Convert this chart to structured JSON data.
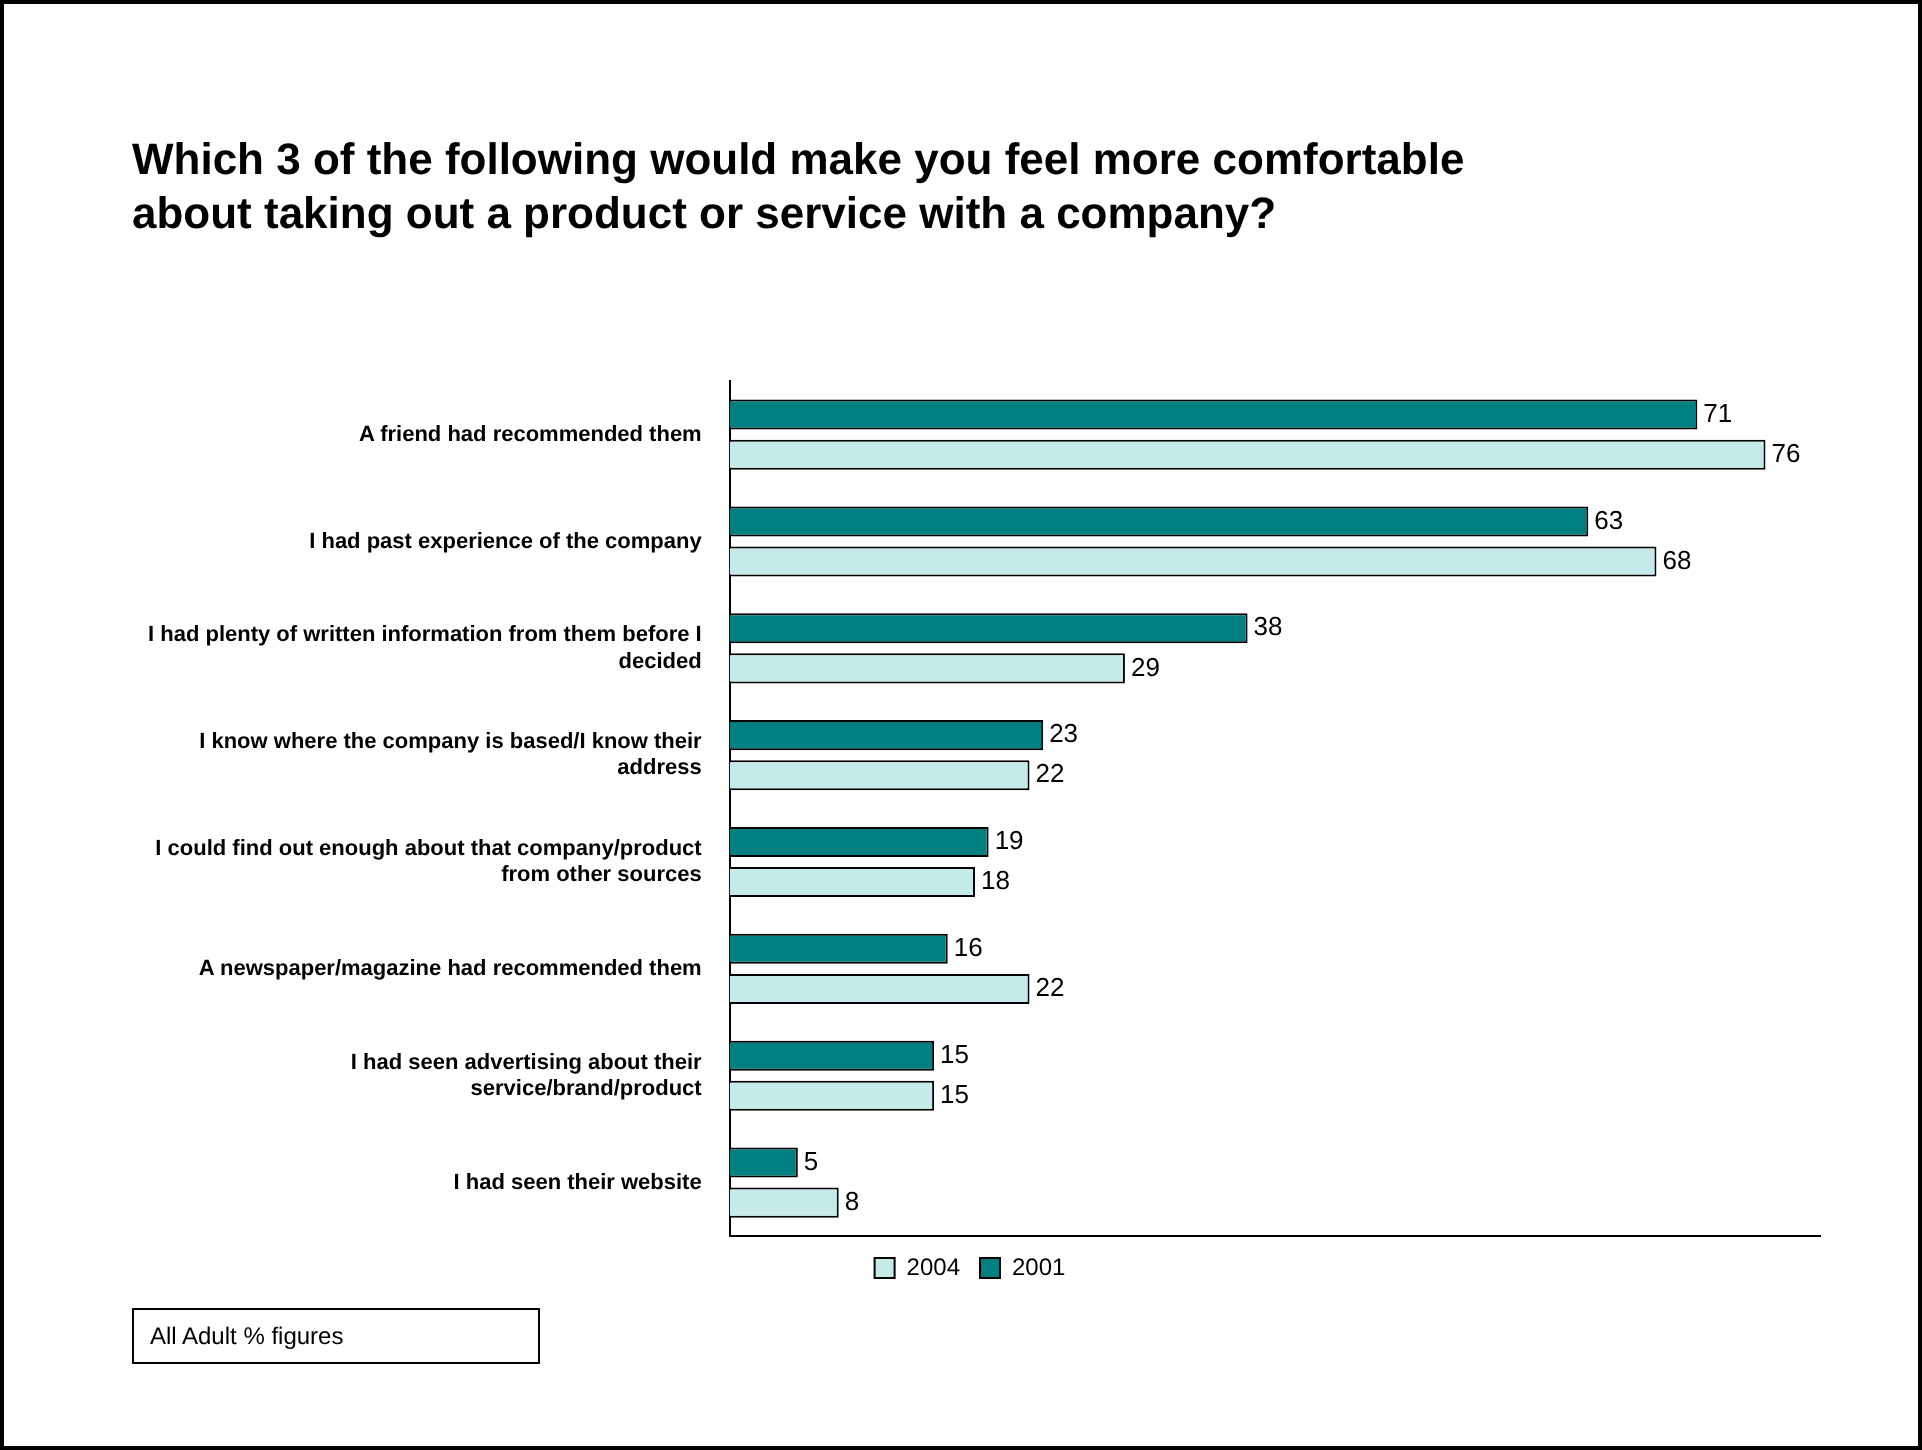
{
  "chart_data": {
    "type": "bar",
    "orientation": "horizontal",
    "title": "Which 3 of the following would make you feel more comfortable about taking out a product or service with a company?",
    "categories": [
      "A friend had recommended them",
      "I had past experience of the company",
      "I had plenty of written information from them before I decided",
      "I know where the company is based/I know their address",
      "I could find out enough about that company/product from other sources",
      "A newspaper/magazine had recommended them",
      "I had seen advertising about their service/brand/product",
      "I had seen their website"
    ],
    "series": [
      {
        "name": "2001",
        "color": "#008080",
        "values": [
          71,
          63,
          38,
          23,
          19,
          16,
          15,
          5
        ]
      },
      {
        "name": "2004",
        "color": "#c4eaea",
        "values": [
          76,
          68,
          29,
          22,
          18,
          22,
          15,
          8
        ]
      }
    ],
    "xlim": [
      0,
      80
    ],
    "tick_labels": "y",
    "data_labels": true,
    "legend": "bottom",
    "annotations": [
      "All Adult % figures"
    ]
  }
}
